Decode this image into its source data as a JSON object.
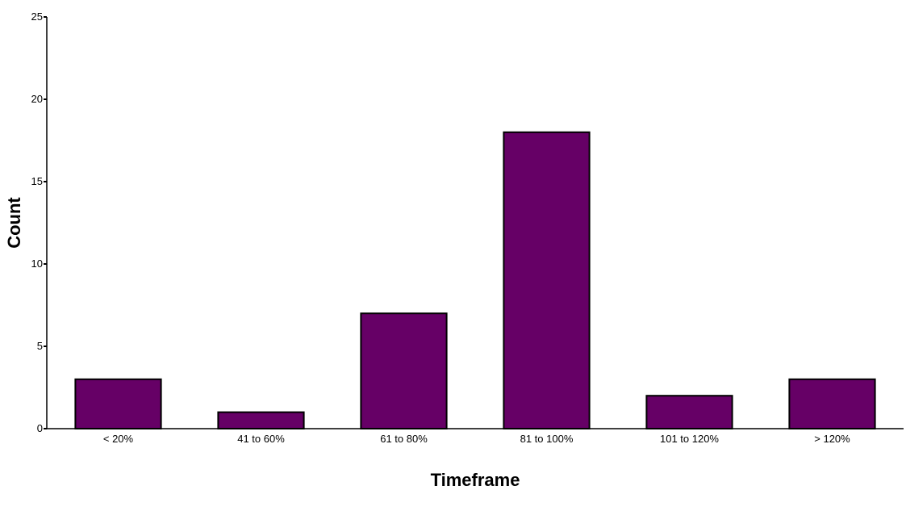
{
  "chart_data": {
    "type": "bar",
    "title": "",
    "xlabel": "Timeframe",
    "ylabel": "Count",
    "categories": [
      "< 20%",
      "41 to 60%",
      "61 to 80%",
      "81 to 100%",
      "101 to 120%",
      "> 120%"
    ],
    "values": [
      3,
      1,
      7,
      18,
      2,
      3
    ],
    "ylim": [
      0,
      25
    ],
    "yticks": [
      0,
      5,
      10,
      15,
      20,
      25
    ],
    "grid": false,
    "legend": "none",
    "bar_color": "#660066",
    "bar_edge_color": "#000000"
  }
}
